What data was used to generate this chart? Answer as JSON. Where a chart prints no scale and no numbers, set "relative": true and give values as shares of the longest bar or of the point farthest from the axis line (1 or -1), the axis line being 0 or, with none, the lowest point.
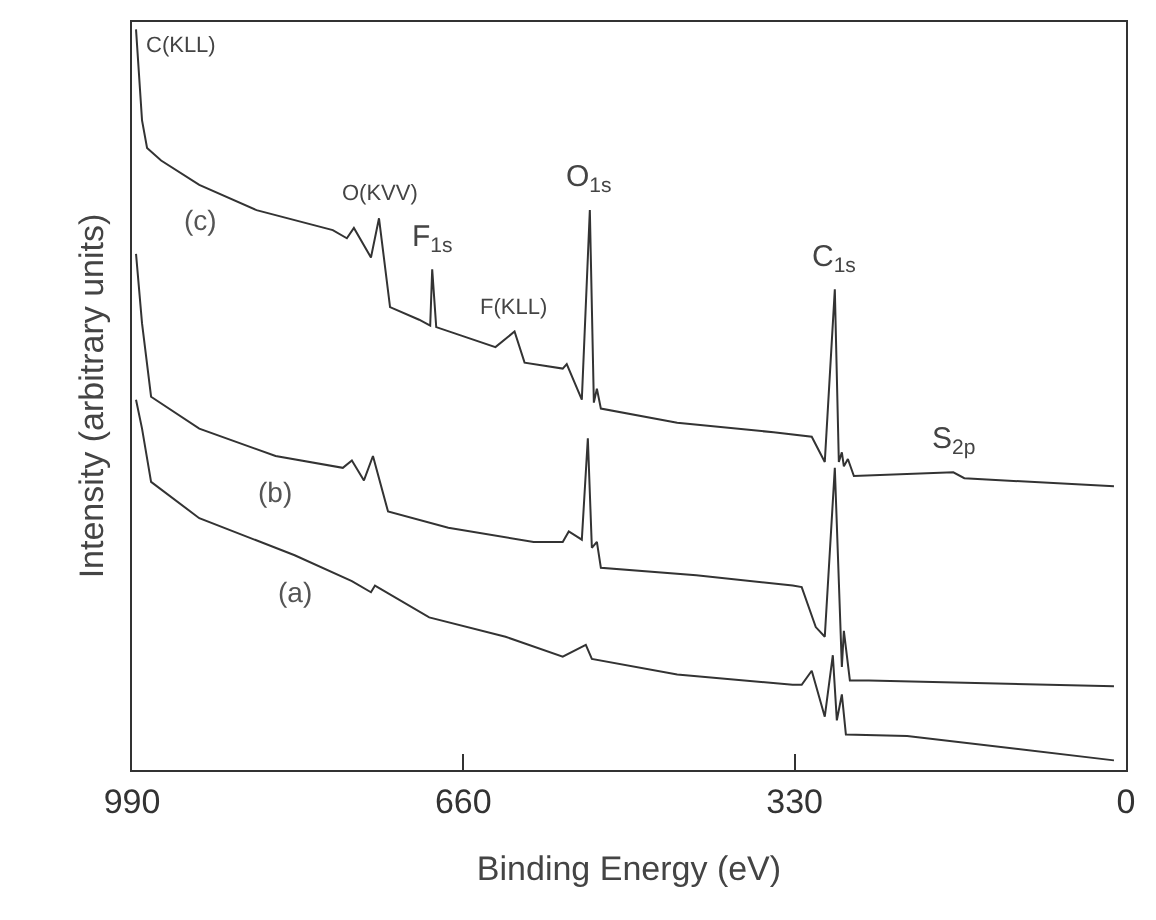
{
  "chart_data": {
    "type": "line",
    "relative": true,
    "xlabel": "Binding Energy (eV)",
    "ylabel": "Intensity (arbitrary units)",
    "xlim": [
      990,
      0
    ],
    "xticks": [
      990,
      660,
      330,
      0
    ],
    "tick_labels": "x",
    "legend": false,
    "marker": "none",
    "line_style": "solid",
    "series": [
      {
        "name": "(c)",
        "color": "#333333",
        "x": [
          986,
          980,
          975,
          961,
          923,
          866,
          790,
          776,
          769,
          752,
          744,
          733,
          704,
          693,
          691,
          687,
          628,
          609,
          599,
          561,
          557,
          542,
          534,
          530,
          527,
          523,
          447,
          351,
          313,
          300,
          290,
          286,
          283,
          281,
          277,
          271,
          172,
          161,
          12
        ],
        "values": [
          1.0,
          0.877,
          0.84,
          0.823,
          0.79,
          0.756,
          0.729,
          0.718,
          0.732,
          0.692,
          0.745,
          0.625,
          0.608,
          0.6,
          0.676,
          0.598,
          0.571,
          0.592,
          0.55,
          0.542,
          0.548,
          0.5,
          0.756,
          0.496,
          0.515,
          0.488,
          0.469,
          0.456,
          0.45,
          0.416,
          0.649,
          0.416,
          0.429,
          0.41,
          0.42,
          0.397,
          0.402,
          0.394,
          0.383
        ]
      },
      {
        "name": "(b)",
        "color": "#333333",
        "x": [
          986,
          980,
          971,
          923,
          847,
          780,
          771,
          759,
          750,
          735,
          675,
          590,
          561,
          555,
          542,
          536,
          532,
          527,
          523,
          428,
          332,
          323,
          309,
          300,
          290,
          283,
          281,
          275,
          256,
          12
        ],
        "values": [
          0.697,
          0.603,
          0.504,
          0.461,
          0.424,
          0.408,
          0.418,
          0.391,
          0.424,
          0.349,
          0.327,
          0.308,
          0.308,
          0.322,
          0.311,
          0.448,
          0.3,
          0.308,
          0.273,
          0.263,
          0.249,
          0.247,
          0.193,
          0.18,
          0.408,
          0.139,
          0.188,
          0.121,
          0.121,
          0.113
        ]
      },
      {
        "name": "(a)",
        "color": "#333333",
        "x": [
          986,
          980,
          971,
          923,
          828,
          771,
          752,
          748,
          694,
          618,
          561,
          538,
          532,
          447,
          332,
          323,
          313,
          300,
          292,
          288,
          283,
          279,
          218,
          12
        ],
        "values": [
          0.5,
          0.461,
          0.389,
          0.34,
          0.29,
          0.255,
          0.24,
          0.249,
          0.206,
          0.18,
          0.153,
          0.169,
          0.15,
          0.129,
          0.115,
          0.115,
          0.134,
          0.072,
          0.155,
          0.067,
          0.102,
          0.048,
          0.046,
          0.013
        ]
      }
    ],
    "annotations": [
      {
        "text": "C(KLL)",
        "x": 986,
        "y": 1.0
      },
      {
        "text": "O(KVV)",
        "x": 744,
        "y": 0.745
      },
      {
        "text": "F$_{1s}$",
        "x": 691,
        "y": 0.676
      },
      {
        "text": "F(KLL)",
        "x": 609,
        "y": 0.592
      },
      {
        "text": "O$_{1s}$",
        "x": 534,
        "y": 0.756
      },
      {
        "text": "C$_{1s}$",
        "x": 290,
        "y": 0.649
      },
      {
        "text": "S$_{2p}$",
        "x": 172,
        "y": 0.402
      }
    ]
  }
}
